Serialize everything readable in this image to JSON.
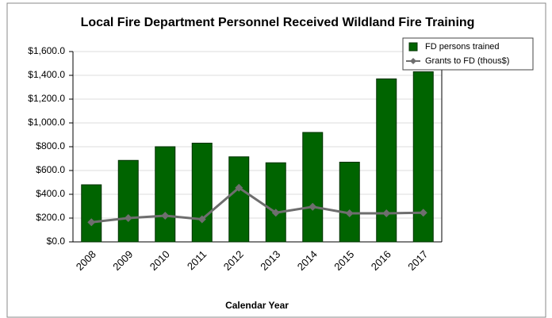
{
  "chart_data": {
    "type": "bar",
    "title": "Local Fire Department Personnel Received Wildland Fire Training",
    "x_label": "Calendar Year",
    "categories": [
      "2008",
      "2009",
      "2010",
      "2011",
      "2012",
      "2013",
      "2014",
      "2015",
      "2016",
      "2017"
    ],
    "series": [
      {
        "name": "FD persons trained",
        "type": "bar",
        "color": "#006400",
        "values": [
          480,
          685,
          800,
          830,
          715,
          665,
          920,
          670,
          1370,
          1430
        ]
      },
      {
        "name": "Grants to FD (thous$)",
        "type": "line",
        "color": "#6e6e6e",
        "values": [
          165,
          200,
          220,
          190,
          455,
          245,
          295,
          240,
          240,
          245
        ]
      }
    ],
    "ylim": [
      0,
      1600
    ],
    "yticks": [
      {
        "value": 0,
        "label": "$0.0"
      },
      {
        "value": 200,
        "label": "$200.0"
      },
      {
        "value": 400,
        "label": "$400.0"
      },
      {
        "value": 600,
        "label": "$600.0"
      },
      {
        "value": 800,
        "label": "$800.0"
      },
      {
        "value": 1000,
        "label": "$1,000.0"
      },
      {
        "value": 1200,
        "label": "$1,200.0"
      },
      {
        "value": 1400,
        "label": "$1,400.0"
      },
      {
        "value": 1600,
        "label": "$1,600.0"
      }
    ],
    "grid": true,
    "legend": "upper right"
  }
}
